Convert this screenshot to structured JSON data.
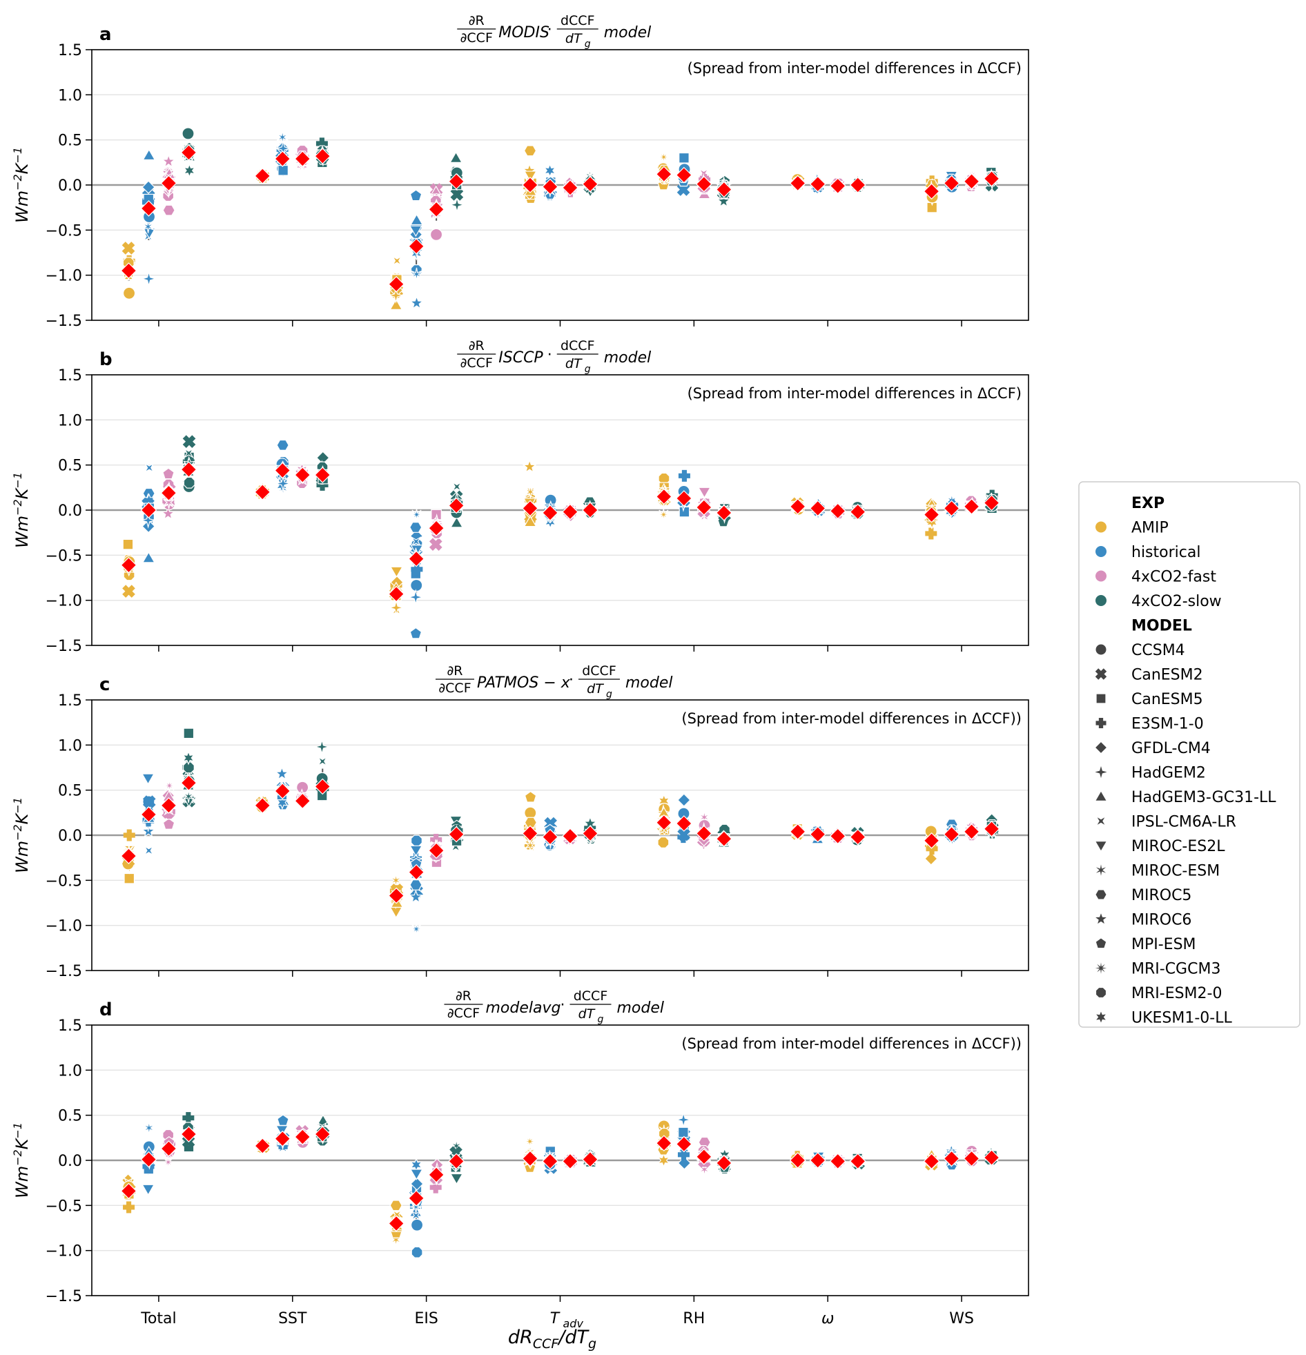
{
  "figure": {
    "x_axis_label": "dR_CCF/dT_g",
    "y_axis_label": "Wm^-2K^-1",
    "note_symbol": "Δ"
  },
  "panels": [
    {
      "letter": "a",
      "title_method": "MODIS",
      "note": "(Spread from inter-model differences in ΔCCF)"
    },
    {
      "letter": "b",
      "title_method": "ISCCP",
      "note": "(Spread from inter-model differences in ΔCCF)"
    },
    {
      "letter": "c",
      "title_method": "PATMOS − x",
      "note": "(Spread from inter-model differences in ΔCCF))"
    },
    {
      "letter": "d",
      "title_method": "modelavg",
      "note": "(Spread from inter-model differences in ΔCCF))"
    }
  ],
  "title_parts": {
    "dR": "∂R",
    "dCCF_partial": "∂CCF",
    "dCCF": "dCCF",
    "dTg": "dT",
    "g": "g",
    "model": "model",
    "dot": "·"
  },
  "legend": {
    "exp_heading": "EXP",
    "experiments": [
      {
        "name": "AMIP",
        "color": "#E8B33D"
      },
      {
        "name": "historical",
        "color": "#3B8BC4"
      },
      {
        "name": "4xCO2-fast",
        "color": "#D88FBC"
      },
      {
        "name": "4xCO2-slow",
        "color": "#2E6E6C"
      }
    ],
    "model_heading": "MODEL",
    "models": [
      {
        "name": "CCSM4",
        "marker": "circle"
      },
      {
        "name": "CanESM2",
        "marker": "x"
      },
      {
        "name": "CanESM5",
        "marker": "square"
      },
      {
        "name": "E3SM-1-0",
        "marker": "plus"
      },
      {
        "name": "GFDL-CM4",
        "marker": "diamond"
      },
      {
        "name": "HadGEM2",
        "marker": "star4"
      },
      {
        "name": "HadGEM3-GC31-LL",
        "marker": "triangle-up"
      },
      {
        "name": "IPSL-CM6A-LR",
        "marker": "hourglass"
      },
      {
        "name": "MIROC-ES2L",
        "marker": "triangle-down"
      },
      {
        "name": "MIROC-ESM",
        "marker": "asterisk6"
      },
      {
        "name": "MIROC5",
        "marker": "hexagon"
      },
      {
        "name": "MIROC6",
        "marker": "star5"
      },
      {
        "name": "MPI-ESM",
        "marker": "pentagon"
      },
      {
        "name": "MRI-CGCM3",
        "marker": "asterisk8"
      },
      {
        "name": "MRI-ESM2-0",
        "marker": "octagon"
      },
      {
        "name": "UKESM1-0-LL",
        "marker": "star6"
      }
    ],
    "mean_marker_color": "#FF0000"
  },
  "chart_data": {
    "type": "scatter",
    "categories": [
      "Total",
      "SST",
      "EIS",
      "T_adv",
      "RH",
      "ω",
      "WS"
    ],
    "ylim": [
      -1.5,
      1.5
    ],
    "yticks": [
      -1.5,
      -1.0,
      -0.5,
      0.0,
      0.5,
      1.0,
      1.5
    ],
    "grid": "horizontal",
    "legend_placement": "right",
    "series": [
      "AMIP",
      "historical",
      "4xCO2-fast",
      "4xCO2-slow"
    ],
    "panels": [
      {
        "means": [
          [
            -0.95,
            -0.26,
            0.02,
            0.36
          ],
          [
            0.1,
            0.29,
            0.29,
            0.32
          ],
          [
            -1.1,
            -0.68,
            -0.27,
            0.04
          ],
          [
            0.0,
            -0.02,
            -0.03,
            0.01
          ],
          [
            0.12,
            0.11,
            0.01,
            -0.05
          ],
          [
            0.02,
            0.01,
            -0.01,
            0.0
          ],
          [
            -0.07,
            0.02,
            0.04,
            0.07
          ]
        ],
        "min": [
          [
            -1.2,
            -1.04,
            -0.28,
            0.16
          ],
          [
            0.09,
            0.15,
            0.2,
            0.25
          ],
          [
            -1.33,
            -1.31,
            -0.55,
            -0.22
          ],
          [
            -0.15,
            -0.1,
            -0.07,
            -0.07
          ],
          [
            0.0,
            -0.05,
            -0.1,
            -0.18
          ],
          [
            0.0,
            -0.03,
            -0.03,
            -0.02
          ],
          [
            -0.25,
            -0.05,
            -0.02,
            0.0
          ]
        ],
        "max": [
          [
            -0.7,
            0.33,
            0.26,
            0.57
          ],
          [
            0.12,
            0.53,
            0.38,
            0.46
          ],
          [
            -0.84,
            -0.12,
            -0.05,
            0.3
          ],
          [
            0.38,
            0.16,
            0.02,
            0.1
          ],
          [
            0.31,
            0.3,
            0.13,
            0.04
          ],
          [
            0.06,
            0.06,
            0.02,
            0.04
          ],
          [
            0.04,
            0.1,
            0.11,
            0.14
          ]
        ]
      },
      {
        "means": [
          [
            -0.61,
            0.0,
            0.19,
            0.45
          ],
          [
            0.2,
            0.44,
            0.39,
            0.39
          ],
          [
            -0.93,
            -0.54,
            -0.2,
            0.05
          ],
          [
            0.02,
            -0.03,
            -0.02,
            0.0
          ],
          [
            0.15,
            0.13,
            0.03,
            -0.03
          ],
          [
            0.04,
            0.02,
            -0.01,
            -0.02
          ],
          [
            -0.05,
            0.02,
            0.04,
            0.08
          ]
        ],
        "min": [
          [
            -0.9,
            -0.53,
            -0.04,
            0.26
          ],
          [
            0.18,
            0.24,
            0.3,
            0.28
          ],
          [
            -1.11,
            -1.37,
            -0.38,
            -0.14
          ],
          [
            -0.13,
            -0.13,
            -0.06,
            -0.05
          ],
          [
            -0.05,
            -0.02,
            -0.07,
            -0.13
          ],
          [
            0.01,
            -0.03,
            -0.04,
            -0.04
          ],
          [
            -0.26,
            -0.03,
            0.0,
            0.02
          ]
        ],
        "max": [
          [
            -0.38,
            0.47,
            0.4,
            0.76
          ],
          [
            0.24,
            0.72,
            0.45,
            0.58
          ],
          [
            -0.68,
            -0.05,
            -0.05,
            0.26
          ],
          [
            0.48,
            0.11,
            0.02,
            0.09
          ],
          [
            0.35,
            0.38,
            0.2,
            0.05
          ],
          [
            0.07,
            0.07,
            0.03,
            0.03
          ],
          [
            0.07,
            0.11,
            0.1,
            0.16
          ]
        ]
      },
      {
        "means": [
          [
            -0.23,
            0.23,
            0.33,
            0.58
          ],
          [
            0.33,
            0.49,
            0.38,
            0.54
          ],
          [
            -0.67,
            -0.41,
            -0.17,
            0.01
          ],
          [
            0.02,
            -0.02,
            -0.01,
            0.02
          ],
          [
            0.14,
            0.13,
            0.02,
            -0.04
          ],
          [
            0.04,
            0.01,
            -0.01,
            -0.02
          ],
          [
            -0.06,
            0.01,
            0.04,
            0.07
          ]
        ],
        "min": [
          [
            -0.48,
            -0.17,
            0.12,
            0.38
          ],
          [
            0.3,
            0.34,
            0.4,
            0.44
          ],
          [
            -0.85,
            -1.04,
            -0.3,
            -0.13
          ],
          [
            -0.12,
            -0.11,
            -0.05,
            -0.04
          ],
          [
            -0.08,
            -0.02,
            -0.1,
            -0.08
          ],
          [
            0.02,
            -0.04,
            -0.04,
            -0.05
          ],
          [
            -0.26,
            -0.05,
            0.0,
            0.03
          ]
        ],
        "max": [
          [
            0.0,
            0.63,
            0.55,
            1.13
          ],
          [
            0.38,
            0.68,
            0.53,
            0.98
          ],
          [
            -0.5,
            -0.06,
            -0.05,
            0.16
          ],
          [
            0.42,
            0.13,
            0.02,
            0.13
          ],
          [
            0.38,
            0.39,
            0.2,
            0.06
          ],
          [
            0.07,
            0.07,
            0.02,
            0.02
          ],
          [
            0.05,
            0.12,
            0.09,
            0.17
          ]
        ]
      },
      {
        "means": [
          [
            -0.34,
            0.01,
            0.13,
            0.29
          ],
          [
            0.16,
            0.24,
            0.26,
            0.29
          ],
          [
            -0.7,
            -0.42,
            -0.16,
            -0.01
          ],
          [
            0.02,
            -0.01,
            -0.01,
            0.01
          ],
          [
            0.19,
            0.18,
            0.04,
            -0.03
          ],
          [
            0.0,
            0.0,
            -0.01,
            -0.01
          ],
          [
            -0.01,
            0.02,
            0.02,
            0.03
          ]
        ],
        "min": [
          [
            -0.52,
            -0.32,
            -0.02,
            0.15
          ],
          [
            0.14,
            0.15,
            0.2,
            0.22
          ],
          [
            -0.88,
            -1.02,
            -0.3,
            -0.2
          ],
          [
            -0.08,
            -0.08,
            -0.03,
            -0.02
          ],
          [
            0.0,
            -0.03,
            -0.1,
            -0.08
          ],
          [
            -0.03,
            -0.03,
            -0.03,
            -0.03
          ],
          [
            -0.05,
            -0.05,
            -0.02,
            0.0
          ]
        ],
        "max": [
          [
            -0.22,
            0.36,
            0.28,
            0.47
          ],
          [
            0.18,
            0.44,
            0.32,
            0.44
          ],
          [
            -0.5,
            -0.05,
            -0.05,
            0.16
          ],
          [
            0.21,
            0.1,
            0.02,
            0.06
          ],
          [
            0.38,
            0.45,
            0.2,
            0.06
          ],
          [
            0.04,
            0.04,
            0.02,
            0.02
          ],
          [
            0.06,
            0.1,
            0.1,
            0.08
          ]
        ]
      }
    ]
  }
}
